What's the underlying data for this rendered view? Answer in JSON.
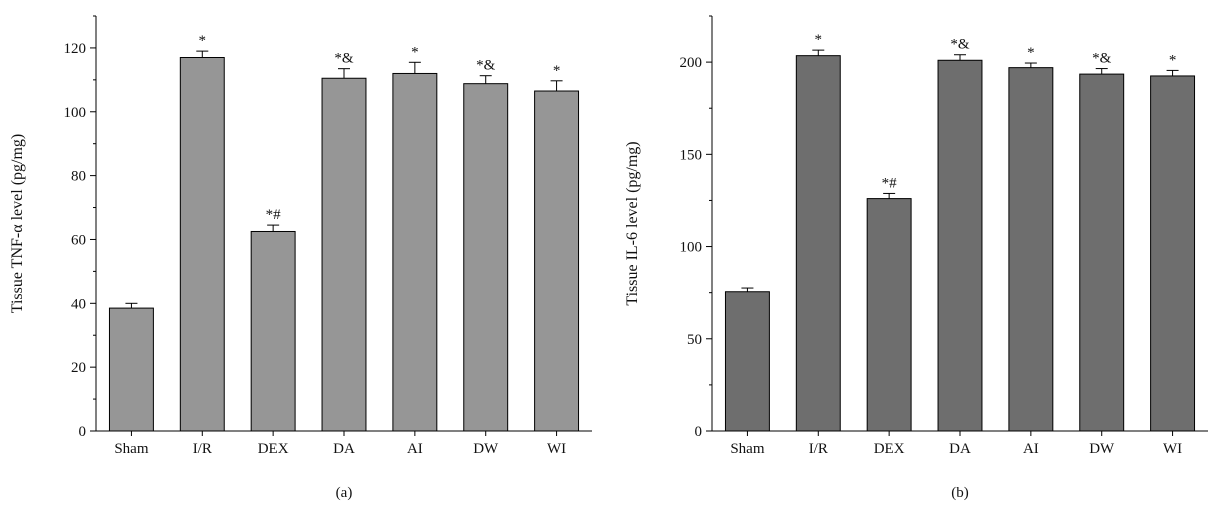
{
  "chart_data": [
    {
      "type": "bar",
      "panel_label": "(a)",
      "ylabel": "Tissue TNF-α level (pg/mg)",
      "xlabel": "",
      "ylim": [
        0,
        130
      ],
      "yticks": [
        0,
        20,
        40,
        60,
        80,
        100,
        120
      ],
      "bar_color": "#969696",
      "categories": [
        "Sham",
        "I/R",
        "DEX",
        "DA",
        "AI",
        "DW",
        "WI"
      ],
      "values": [
        38.5,
        117.0,
        62.5,
        110.5,
        112.0,
        108.8,
        106.5
      ],
      "errors": [
        1.5,
        2.0,
        2.0,
        3.0,
        3.5,
        2.5,
        3.2
      ],
      "annotations": [
        "",
        "*",
        "*#",
        "*&",
        "*",
        "*&",
        "*"
      ]
    },
    {
      "type": "bar",
      "panel_label": "(b)",
      "ylabel": "Tissue IL-6 level (pg/mg)",
      "xlabel": "",
      "ylim": [
        0,
        225
      ],
      "yticks": [
        0,
        50,
        100,
        150,
        200
      ],
      "bar_color": "#6e6e6e",
      "categories": [
        "Sham",
        "I/R",
        "DEX",
        "DA",
        "AI",
        "DW",
        "WI"
      ],
      "values": [
        75.5,
        203.5,
        126.0,
        201.0,
        197.0,
        193.5,
        192.5
      ],
      "errors": [
        2.0,
        3.0,
        2.8,
        3.0,
        2.5,
        3.0,
        3.0
      ],
      "annotations": [
        "",
        "*",
        "*#",
        "*&",
        "*",
        "*&",
        "*"
      ]
    }
  ]
}
